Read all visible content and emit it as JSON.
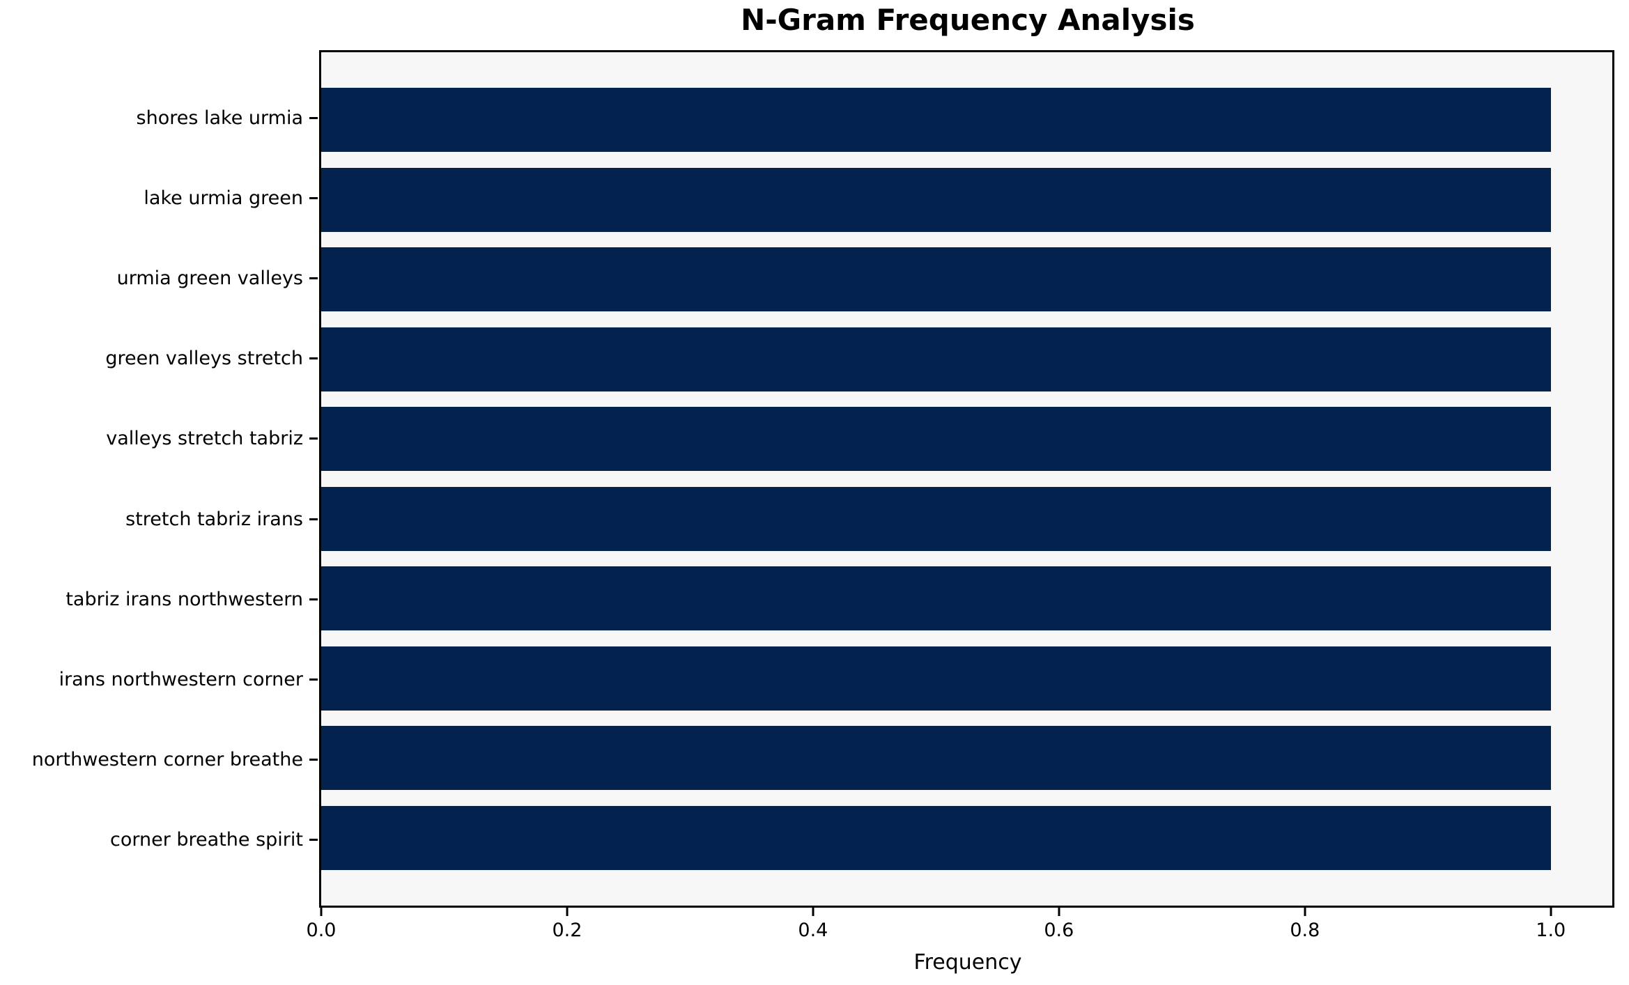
{
  "title": "N-Gram Frequency Analysis",
  "chart_data": {
    "type": "bar",
    "orientation": "horizontal",
    "title": "N-Gram Frequency Analysis",
    "xlabel": "Frequency",
    "ylabel": "",
    "categories": [
      "shores lake urmia",
      "lake urmia green",
      "urmia green valleys",
      "green valleys stretch",
      "valleys stretch tabriz",
      "stretch tabriz irans",
      "tabriz irans northwestern",
      "irans northwestern corner",
      "northwestern corner breathe",
      "corner breathe spirit"
    ],
    "values": [
      1.0,
      1.0,
      1.0,
      1.0,
      1.0,
      1.0,
      1.0,
      1.0,
      1.0,
      1.0
    ],
    "xlim": [
      0,
      1.05
    ],
    "xtick_values": [
      0.0,
      0.2,
      0.4,
      0.6,
      0.8,
      1.0
    ],
    "xtick_labels": [
      "0.0",
      "0.2",
      "0.4",
      "0.6",
      "0.8",
      "1.0"
    ],
    "grid": false,
    "legend": null,
    "bar_color": "#03224e",
    "plot_bg": "#f7f7f8",
    "figure_bg": "#ffffff",
    "spine_color": "#000000",
    "text_color": "#000000"
  }
}
